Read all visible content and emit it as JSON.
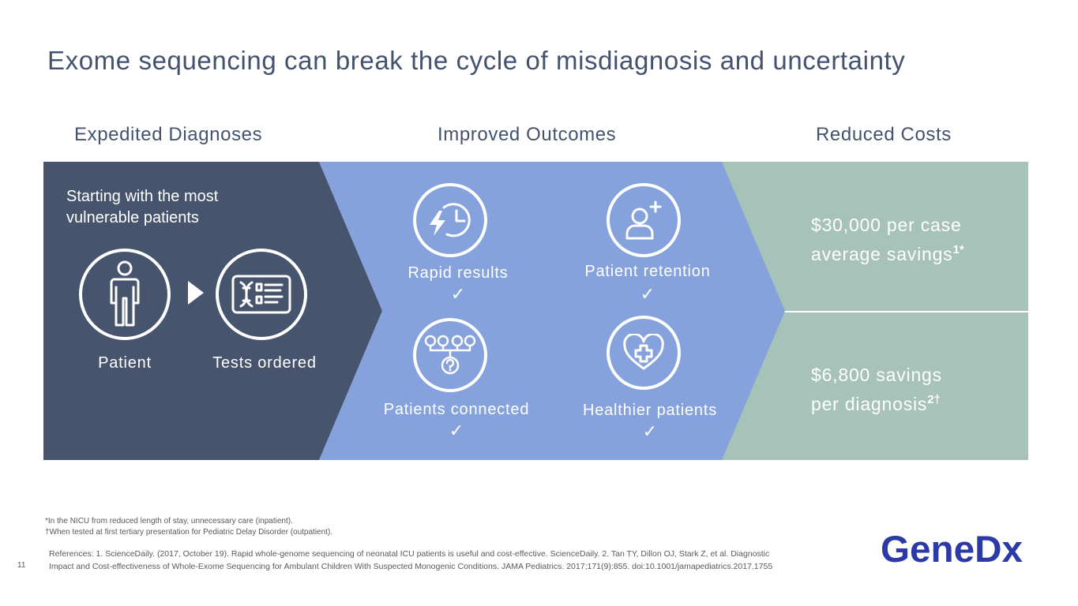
{
  "title": "Exome sequencing can break the cycle of misdiagnosis and uncertainty",
  "columns": {
    "expedited": "Expedited Diagnoses",
    "improved": "Improved Outcomes",
    "reduced": "Reduced Costs"
  },
  "expedited_panel": {
    "intro_line1": "Starting with the most",
    "intro_line2": "vulnerable patients",
    "patient_label": "Patient",
    "tests_label": "Tests ordered"
  },
  "outcomes": {
    "rapid": "Rapid results",
    "retention": "Patient retention",
    "connected": "Patients connected",
    "healthier": "Healthier patients",
    "check": "✓"
  },
  "costs": {
    "case_line1": "$30,000 per case",
    "case_line2": "average savings",
    "case_sup": "1*",
    "diag_line1": "$6,800 savings",
    "diag_line2": "per diagnosis",
    "diag_sup": "2†"
  },
  "footnotes": {
    "note1": "*In the NICU from reduced length of stay, unnecessary care (inpatient).",
    "note2": "†When tested at first tertiary presentation for Pediatric Delay Disorder (outpatient)."
  },
  "references": {
    "line1": "References: 1. ScienceDaily. (2017, October 19). Rapid whole-genome sequencing of neonatal ICU patients is useful and cost-effective. ScienceDaily. 2. Tan TY, Dillon OJ, Stark Z, et al. Diagnostic",
    "line2": "Impact and Cost-effectiveness of Whole-Exome Sequencing for Ambulant Children With Suspected Monogenic Conditions. JAMA Pediatrics. 2017;171(9):855. doi:10.1001/jamapediatrics.2017.1755"
  },
  "page_number": "11",
  "logo": {
    "text": "GeneDx",
    "color": "#2b3aa6"
  },
  "colors": {
    "dark_panel": "#47546d",
    "blue_panel": "#85a2dd",
    "green_panel": "#a6c2b9",
    "title": "#44526e"
  }
}
